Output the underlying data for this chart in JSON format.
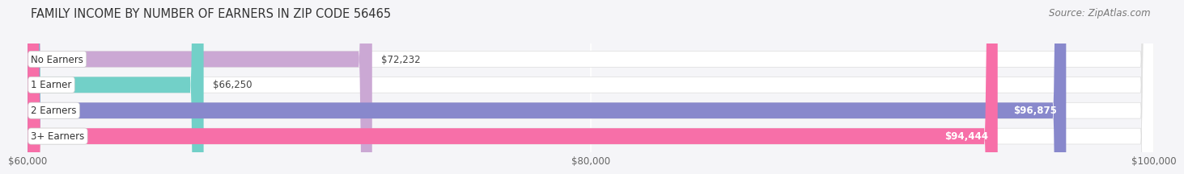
{
  "title": "FAMILY INCOME BY NUMBER OF EARNERS IN ZIP CODE 56465",
  "source": "Source: ZipAtlas.com",
  "categories": [
    "No Earners",
    "1 Earner",
    "2 Earners",
    "3+ Earners"
  ],
  "values": [
    72232,
    66250,
    96875,
    94444
  ],
  "bar_colors": [
    "#cba8d4",
    "#72d0c8",
    "#8888cc",
    "#f76fa8"
  ],
  "bar_labels": [
    "$72,232",
    "$66,250",
    "$96,875",
    "$94,444"
  ],
  "value_inside": [
    false,
    false,
    true,
    true
  ],
  "xmin": 60000,
  "xmax": 100000,
  "xticks": [
    60000,
    80000,
    100000
  ],
  "xtick_labels": [
    "$60,000",
    "$80,000",
    "$100,000"
  ],
  "background_color": "#f5f5f8",
  "bar_bg_color": "#e8e8ee",
  "title_fontsize": 10.5,
  "source_fontsize": 8.5,
  "label_fontsize": 8.5,
  "value_fontsize": 8.5,
  "tick_fontsize": 8.5,
  "bar_height": 0.62
}
